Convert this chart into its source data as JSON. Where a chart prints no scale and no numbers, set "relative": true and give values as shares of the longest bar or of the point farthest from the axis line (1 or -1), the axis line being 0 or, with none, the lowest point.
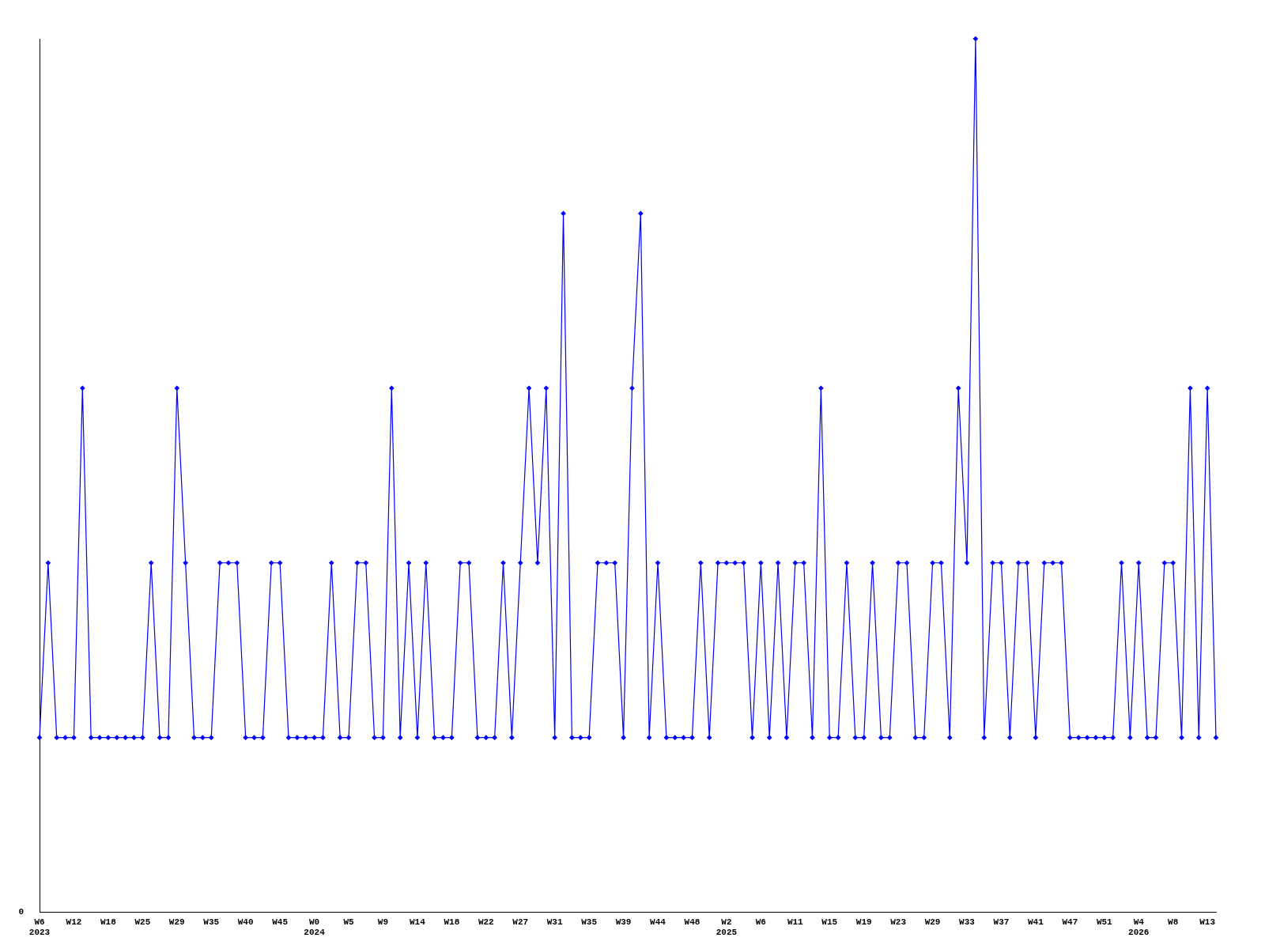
{
  "chart_data": {
    "type": "line",
    "relative": true,
    "marker": "diamond",
    "grid": false,
    "legend": false,
    "categories": [
      "W6\n2023",
      null,
      null,
      null,
      "W12",
      null,
      null,
      null,
      "W18",
      null,
      null,
      null,
      "W25",
      null,
      null,
      null,
      "W29",
      null,
      null,
      null,
      "W35",
      null,
      null,
      null,
      "W40",
      null,
      null,
      null,
      "W45",
      null,
      null,
      null,
      "W0\n2024",
      null,
      null,
      null,
      "W5",
      null,
      null,
      null,
      "W9",
      null,
      null,
      null,
      "W14",
      null,
      null,
      null,
      "W18",
      null,
      null,
      null,
      "W22",
      null,
      null,
      null,
      "W27",
      null,
      null,
      null,
      "W31",
      null,
      null,
      null,
      "W35",
      null,
      null,
      null,
      "W39",
      null,
      null,
      null,
      "W44",
      null,
      null,
      null,
      "W48",
      null,
      null,
      null,
      "W2\n2025",
      null,
      null,
      null,
      "W6",
      null,
      null,
      null,
      "W11",
      null,
      null,
      null,
      "W15",
      null,
      null,
      null,
      "W19",
      null,
      null,
      null,
      "W23",
      null,
      null,
      null,
      "W29",
      null,
      null,
      null,
      "W33",
      null,
      null,
      null,
      "W37",
      null,
      null,
      null,
      "W41",
      null,
      null,
      null,
      "W47",
      null,
      null,
      null,
      "W51",
      null,
      null,
      null,
      "W4\n2026",
      null,
      null,
      null,
      "W8",
      null,
      null,
      null,
      "W13",
      null
    ],
    "series": [
      {
        "color": "#0000ff",
        "values": [
          0.2,
          0.4,
          0.2,
          0.2,
          0.2,
          0.6,
          0.2,
          0.2,
          0.2,
          0.2,
          0.2,
          0.2,
          0.2,
          0.4,
          0.2,
          0.2,
          0.6,
          0.4,
          0.2,
          0.2,
          0.2,
          0.4,
          0.4,
          0.4,
          0.2,
          0.2,
          0.2,
          0.4,
          0.4,
          0.2,
          0.2,
          0.2,
          0.2,
          0.2,
          0.4,
          0.2,
          0.2,
          0.4,
          0.4,
          0.2,
          0.2,
          0.6,
          0.2,
          0.4,
          0.2,
          0.4,
          0.2,
          0.2,
          0.2,
          0.4,
          0.4,
          0.2,
          0.2,
          0.2,
          0.4,
          0.2,
          0.4,
          0.6,
          0.4,
          0.6,
          0.2,
          0.8,
          0.2,
          0.2,
          0.2,
          0.4,
          0.4,
          0.4,
          0.2,
          0.6,
          0.8,
          0.2,
          0.4,
          0.2,
          0.2,
          0.2,
          0.2,
          0.4,
          0.2,
          0.4,
          0.4,
          0.4,
          0.4,
          0.2,
          0.4,
          0.2,
          0.4,
          0.2,
          0.4,
          0.4,
          0.2,
          0.6,
          0.2,
          0.2,
          0.4,
          0.2,
          0.2,
          0.4,
          0.2,
          0.2,
          0.4,
          0.4,
          0.2,
          0.2,
          0.4,
          0.4,
          0.2,
          0.6,
          0.4,
          1,
          0.2,
          0.4,
          0.4,
          0.2,
          0.4,
          0.4,
          0.2,
          0.4,
          0.4,
          0.4,
          0.2,
          0.2,
          0.2,
          0.2,
          0.2,
          0.2,
          0.4,
          0.2,
          0.4,
          0.2,
          0.2,
          0.4,
          0.4,
          0.2,
          0.6,
          0.2,
          0.6,
          0.2
        ]
      }
    ],
    "annotations": [
      "0"
    ]
  }
}
